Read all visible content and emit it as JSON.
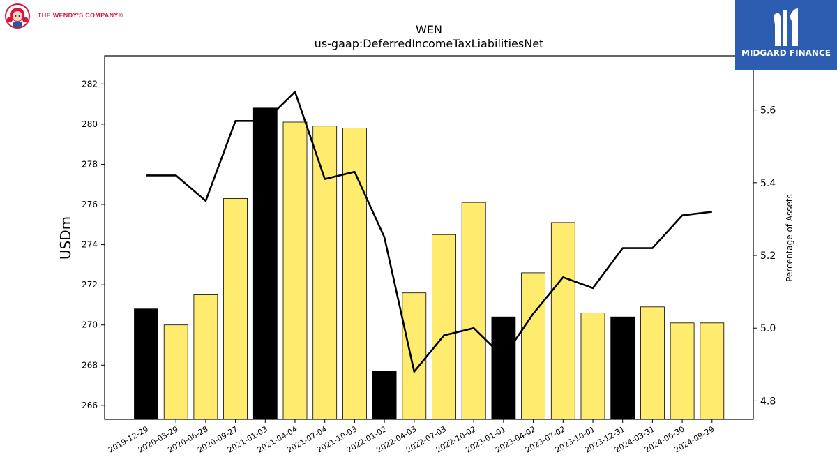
{
  "logos": {
    "left_brand": "THE WENDY'S COMPANY®",
    "right_brand": "MIDGARD FINANCE"
  },
  "chart_data": {
    "type": "bar",
    "title": "WEN",
    "subtitle": "us-gaap:DeferredIncomeTaxLiabilitiesNet",
    "ylabel": "USDm",
    "y2label": "Percentage of Assets",
    "ylim": [
      265.3,
      283.4
    ],
    "y2lim": [
      4.749,
      5.749
    ],
    "yticks": [
      266,
      268,
      270,
      272,
      274,
      276,
      278,
      280,
      282
    ],
    "y2ticks": [
      4.8,
      5.0,
      5.2,
      5.4,
      5.6
    ],
    "grid": false,
    "categories": [
      "2019-12-29",
      "2020-03-29",
      "2020-06-28",
      "2020-09-27",
      "2021-01-03",
      "2021-04-04",
      "2021-07-04",
      "2021-10-03",
      "2022-01-02",
      "2022-04-03",
      "2022-07-03",
      "2022-10-02",
      "2023-01-01",
      "2023-04-02",
      "2023-07-02",
      "2023-10-01",
      "2023-12-31",
      "2024-03-31",
      "2024-06-30",
      "2024-09-29"
    ],
    "series": [
      {
        "type": "bar",
        "axis": "left",
        "values": [
          270.8,
          270.0,
          271.5,
          276.3,
          280.8,
          280.1,
          279.9,
          279.8,
          267.7,
          271.6,
          274.5,
          276.1,
          270.4,
          272.6,
          275.1,
          270.6,
          270.4,
          270.9,
          270.1,
          270.1
        ],
        "colors": [
          "#000000",
          "#ffec6e",
          "#ffec6e",
          "#ffec6e",
          "#000000",
          "#ffec6e",
          "#ffec6e",
          "#ffec6e",
          "#000000",
          "#ffec6e",
          "#ffec6e",
          "#ffec6e",
          "#000000",
          "#ffec6e",
          "#ffec6e",
          "#ffec6e",
          "#000000",
          "#ffec6e",
          "#ffec6e",
          "#ffec6e"
        ]
      },
      {
        "type": "line",
        "axis": "right",
        "color": "#000000",
        "values": [
          5.42,
          5.42,
          5.35,
          5.57,
          5.57,
          5.65,
          5.41,
          5.43,
          5.25,
          4.88,
          4.98,
          5.0,
          4.92,
          5.04,
          5.14,
          5.11,
          5.22,
          5.22,
          5.31,
          5.32
        ]
      }
    ]
  }
}
